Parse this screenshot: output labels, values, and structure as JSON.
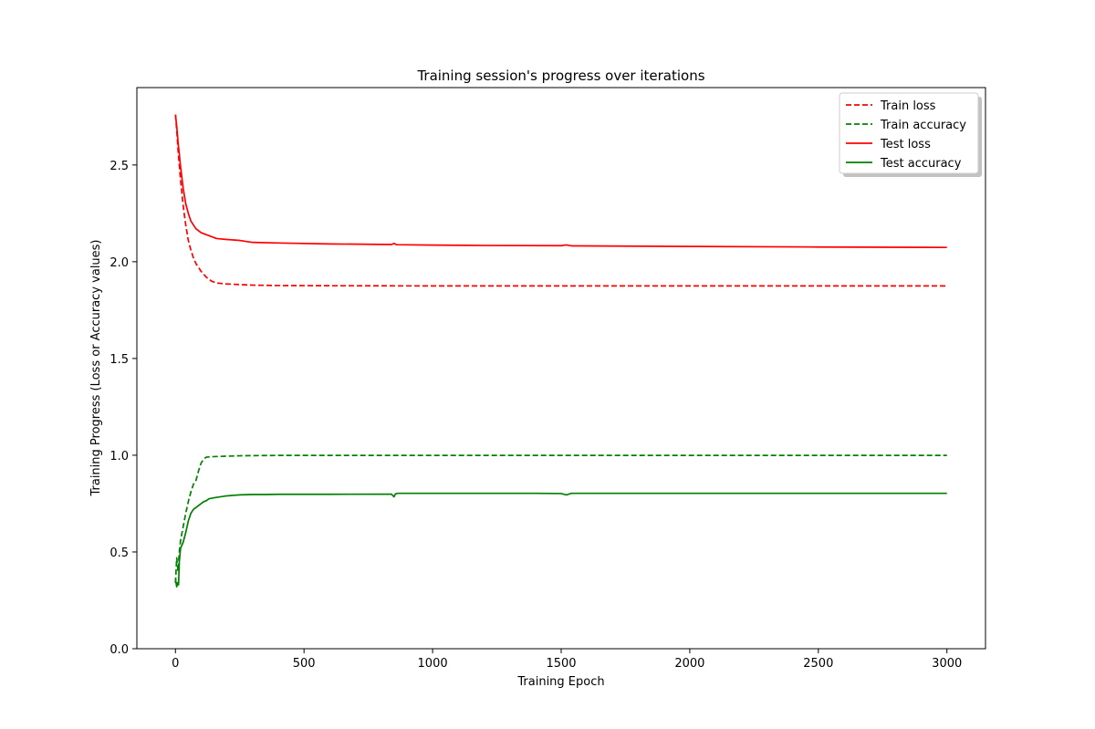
{
  "chart_data": {
    "type": "line",
    "title": "Training session's progress over iterations",
    "xlabel": "Training Epoch",
    "ylabel": "Training Progress (Loss or Accuracy values)",
    "xlim": [
      -150,
      3150
    ],
    "ylim": [
      0.0,
      2.9
    ],
    "xticks": [
      "0",
      "500",
      "1000",
      "1500",
      "2000",
      "2500",
      "3000"
    ],
    "xtick_values": [
      0,
      500,
      1000,
      1500,
      2000,
      2500,
      3000
    ],
    "yticks": [
      "0.0",
      "0.5",
      "1.0",
      "1.5",
      "2.0",
      "2.5"
    ],
    "ytick_values": [
      0.0,
      0.5,
      1.0,
      1.5,
      2.0,
      2.5
    ],
    "grid": false,
    "legend_position": "top-right",
    "series": [
      {
        "name": "Train loss",
        "color": "#ff0000",
        "dash": "dashed",
        "x": [
          0,
          5,
          10,
          20,
          30,
          40,
          50,
          60,
          70,
          80,
          90,
          100,
          120,
          140,
          160,
          200,
          250,
          300,
          400,
          600,
          1000,
          1500,
          2000,
          2500,
          3000
        ],
        "y": [
          2.76,
          2.68,
          2.58,
          2.42,
          2.29,
          2.19,
          2.11,
          2.06,
          2.02,
          1.99,
          1.97,
          1.95,
          1.92,
          1.9,
          1.89,
          1.885,
          1.882,
          1.879,
          1.877,
          1.876,
          1.875,
          1.875,
          1.875,
          1.875,
          1.875
        ]
      },
      {
        "name": "Train accuracy",
        "color": "#008000",
        "dash": "dashed",
        "x": [
          0,
          5,
          10,
          15,
          20,
          30,
          40,
          50,
          60,
          70,
          80,
          90,
          100,
          110,
          120,
          150,
          200,
          250,
          300,
          400,
          600,
          1000,
          1500,
          2000,
          2500,
          3000
        ],
        "y": [
          0.34,
          0.47,
          0.4,
          0.5,
          0.56,
          0.63,
          0.7,
          0.76,
          0.81,
          0.85,
          0.87,
          0.92,
          0.96,
          0.98,
          0.99,
          0.993,
          0.995,
          0.997,
          0.998,
          0.999,
          0.999,
          0.999,
          0.999,
          0.999,
          0.999,
          0.999
        ]
      },
      {
        "name": "Test loss",
        "color": "#ff0000",
        "dash": "solid",
        "x": [
          0,
          5,
          10,
          20,
          30,
          40,
          50,
          60,
          70,
          80,
          90,
          100,
          120,
          140,
          160,
          200,
          250,
          300,
          400,
          600,
          840,
          850,
          860,
          1000,
          1200,
          1500,
          1520,
          1540,
          2000,
          2500,
          3000
        ],
        "y": [
          2.76,
          2.7,
          2.62,
          2.49,
          2.38,
          2.3,
          2.25,
          2.21,
          2.19,
          2.17,
          2.16,
          2.15,
          2.14,
          2.13,
          2.12,
          2.115,
          2.11,
          2.1,
          2.097,
          2.092,
          2.089,
          2.095,
          2.088,
          2.086,
          2.084,
          2.083,
          2.087,
          2.082,
          2.079,
          2.076,
          2.074
        ]
      },
      {
        "name": "Test accuracy",
        "color": "#008000",
        "dash": "solid",
        "x": [
          0,
          5,
          8,
          12,
          15,
          20,
          30,
          40,
          50,
          60,
          70,
          80,
          90,
          100,
          110,
          120,
          130,
          150,
          200,
          250,
          300,
          350,
          400,
          600,
          840,
          850,
          855,
          865,
          1000,
          1200,
          1400,
          1500,
          1520,
          1540,
          2000,
          2500,
          3000
        ],
        "y": [
          0.36,
          0.32,
          0.34,
          0.33,
          0.45,
          0.52,
          0.55,
          0.6,
          0.66,
          0.7,
          0.72,
          0.73,
          0.74,
          0.75,
          0.76,
          0.765,
          0.775,
          0.78,
          0.79,
          0.795,
          0.797,
          0.797,
          0.798,
          0.798,
          0.799,
          0.785,
          0.8,
          0.803,
          0.803,
          0.803,
          0.803,
          0.802,
          0.795,
          0.803,
          0.803,
          0.803,
          0.803
        ]
      }
    ]
  }
}
